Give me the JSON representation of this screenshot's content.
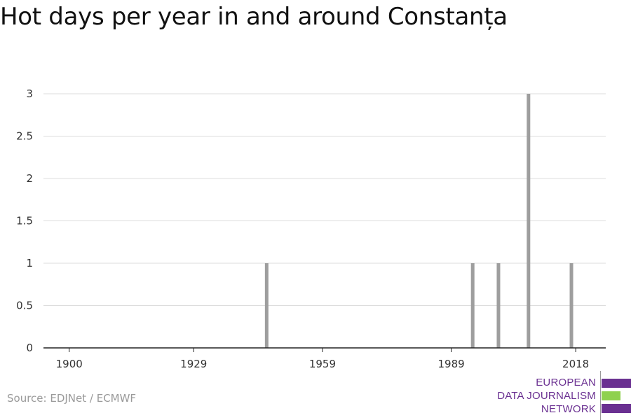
{
  "title": "Hot days per year in and around Constanța",
  "source": "Source: EDJNet / ECMWF",
  "logo": {
    "line1": "EUROPEAN",
    "line2": "DATA JOURNALISM",
    "line3": "NETWORK",
    "colors": {
      "purple": "#6a3091",
      "green": "#8fd14f"
    }
  },
  "chart_data": {
    "type": "bar",
    "title": "Hot days per year in and around Constanța",
    "xlabel": "",
    "ylabel": "",
    "xlim": [
      1894,
      2025
    ],
    "ylim": [
      0,
      3
    ],
    "x_ticks": [
      1900,
      1929,
      1959,
      1989,
      2018
    ],
    "y_ticks": [
      0,
      0.5,
      1,
      1.5,
      2,
      2.5,
      3
    ],
    "y_tick_labels": [
      "0",
      "0.5",
      "1",
      "1.5",
      "2",
      "2.5",
      "3"
    ],
    "grid": true,
    "bar_color": "#9e9e9e",
    "points": [
      {
        "x": 1946,
        "y": 1
      },
      {
        "x": 1994,
        "y": 1
      },
      {
        "x": 2000,
        "y": 1
      },
      {
        "x": 2007,
        "y": 3
      },
      {
        "x": 2017,
        "y": 1
      }
    ]
  }
}
